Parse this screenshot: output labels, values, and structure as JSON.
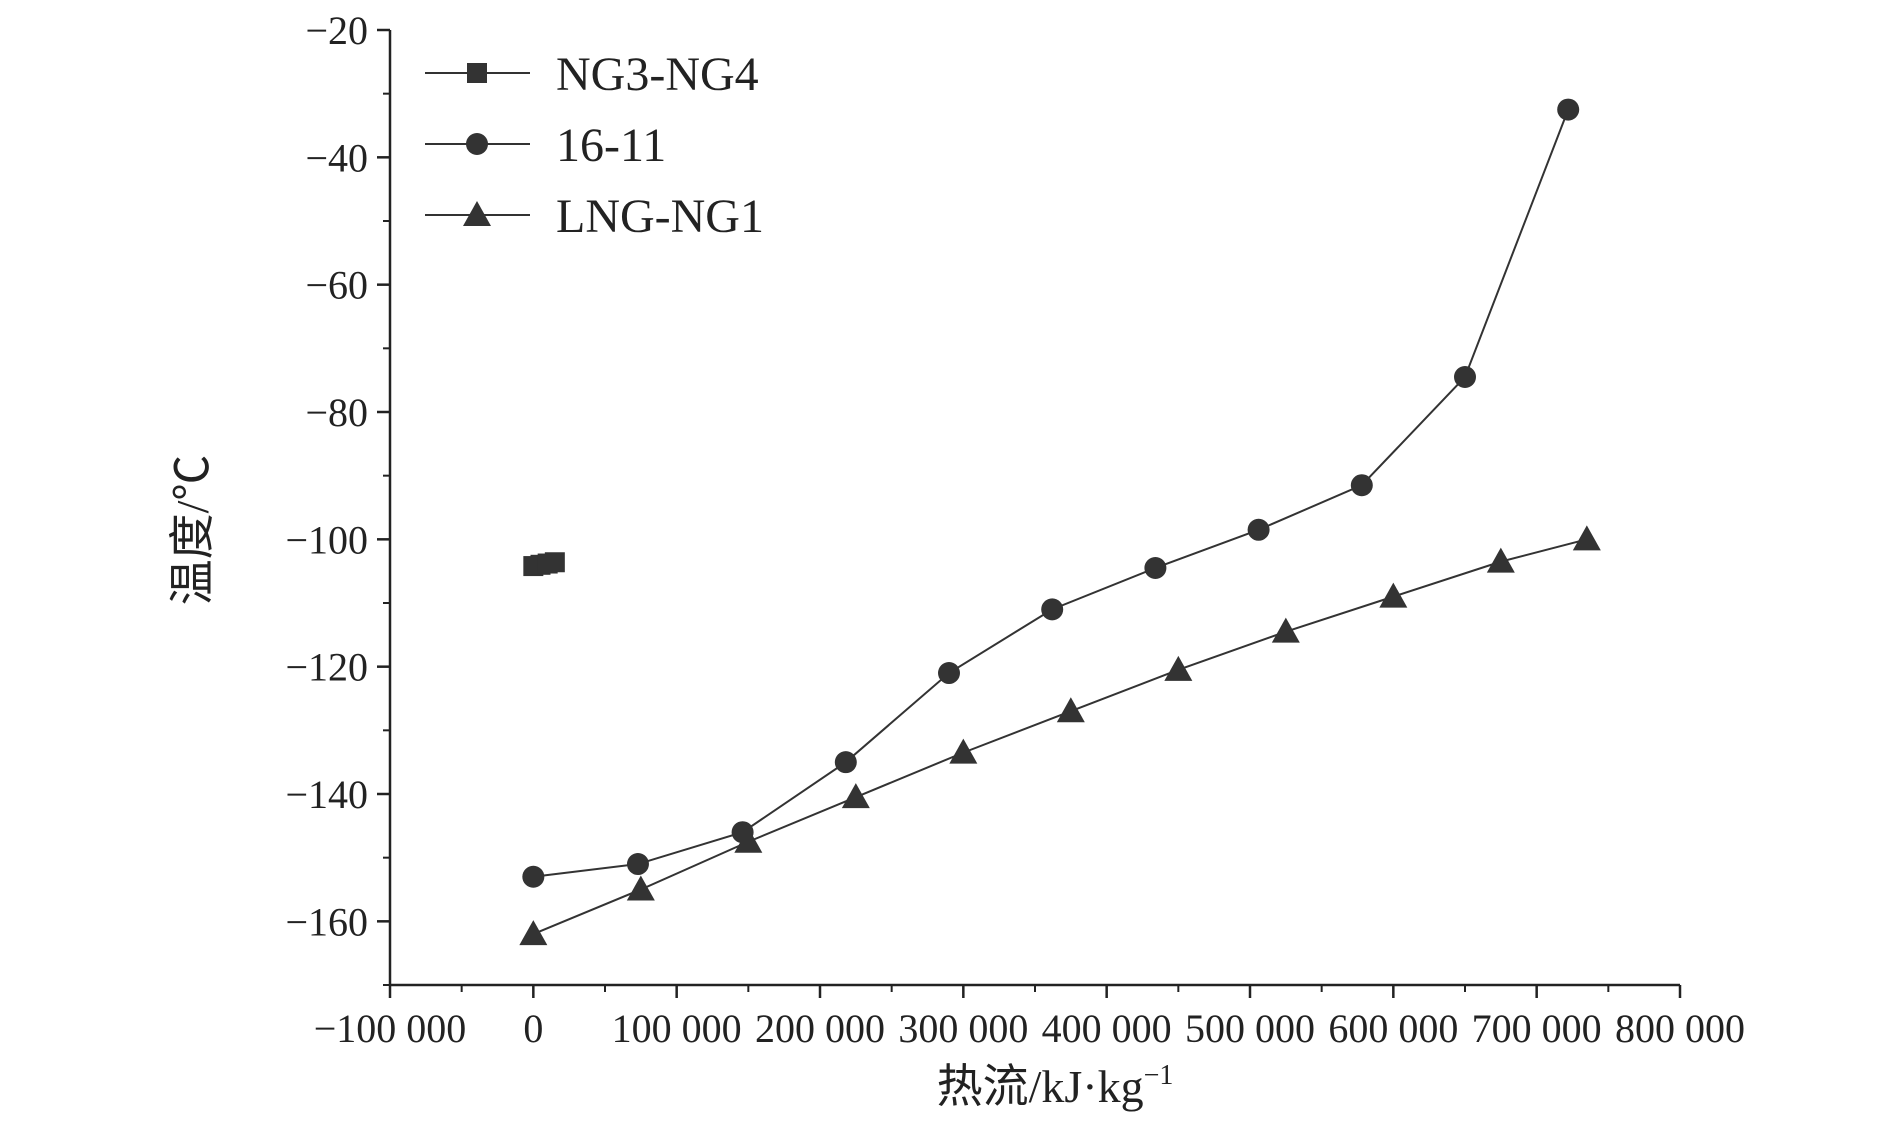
{
  "chart_data": {
    "type": "line",
    "title": "",
    "xlabel": "热流/kJ·kg",
    "xlabel_sup": "−1",
    "ylabel": "温度/℃",
    "xlim": [
      -100000,
      800000
    ],
    "ylim": [
      -170,
      -20
    ],
    "x_ticks": [
      -100000,
      0,
      100000,
      200000,
      300000,
      400000,
      500000,
      600000,
      700000,
      800000
    ],
    "x_tick_labels": [
      "−100 000",
      "0",
      "100 000",
      "200 000",
      "300 000",
      "400 000",
      "500 000",
      "600 000",
      "700 000",
      "800 000"
    ],
    "y_ticks": [
      -20,
      -40,
      -60,
      -80,
      -100,
      -120,
      -140,
      -160
    ],
    "y_tick_labels": [
      "−20",
      "−40",
      "−60",
      "−80",
      "−100",
      "−120",
      "−140",
      "−160"
    ],
    "grid": false,
    "legend_position": "top-left",
    "series": [
      {
        "name": "NG3-NG4",
        "marker": "square",
        "color": "#333333",
        "points": [
          [
            0,
            -104.2
          ],
          [
            5000,
            -104.0
          ],
          [
            10000,
            -103.8
          ],
          [
            15000,
            -103.6
          ]
        ]
      },
      {
        "name": "16-11",
        "marker": "circle",
        "color": "#333333",
        "points": [
          [
            0,
            -153
          ],
          [
            73000,
            -151
          ],
          [
            146000,
            -146
          ],
          [
            218000,
            -135
          ],
          [
            290000,
            -121
          ],
          [
            362000,
            -111
          ],
          [
            434000,
            -104.5
          ],
          [
            506000,
            -98.5
          ],
          [
            578000,
            -91.5
          ],
          [
            650000,
            -74.5
          ],
          [
            722000,
            -32.5
          ]
        ]
      },
      {
        "name": "LNG-NG1",
        "marker": "triangle",
        "color": "#333333",
        "points": [
          [
            0,
            -162
          ],
          [
            75000,
            -155
          ],
          [
            150000,
            -147.5
          ],
          [
            225000,
            -140.5
          ],
          [
            300000,
            -133.5
          ],
          [
            375000,
            -127
          ],
          [
            450000,
            -120.5
          ],
          [
            525000,
            -114.5
          ],
          [
            600000,
            -109
          ],
          [
            675000,
            -103.5
          ],
          [
            735000,
            -100
          ]
        ]
      }
    ]
  }
}
